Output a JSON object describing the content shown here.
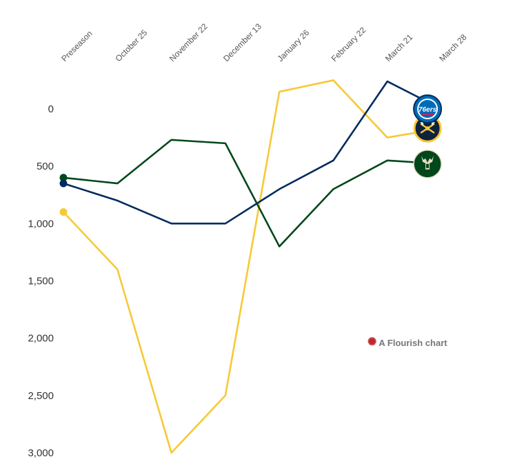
{
  "chart_data": {
    "type": "line",
    "title": "",
    "xlabel": "",
    "ylabel": "",
    "y_reversed": true,
    "ylim": [
      -250,
      3000
    ],
    "yticks": [
      0,
      500,
      1000,
      1500,
      2000,
      2500,
      3000
    ],
    "ytick_labels": [
      "0",
      "500",
      "1,000",
      "1,500",
      "2,000",
      "2,500",
      "3,000"
    ],
    "categories": [
      "Preseason",
      "October 25",
      "November 22",
      "December 13",
      "January 26",
      "February 22",
      "March 21",
      "March 28"
    ],
    "series": [
      {
        "name": "Denver Nuggets",
        "color": "#f6c935",
        "values": [
          900,
          1400,
          3000,
          2500,
          -150,
          -250,
          250,
          170
        ],
        "logo": "nuggets-logo"
      },
      {
        "name": "Milwaukee Bucks",
        "color": "#00471b",
        "values": [
          600,
          650,
          270,
          300,
          1200,
          700,
          450,
          480
        ],
        "logo": "bucks-logo"
      },
      {
        "name": "Philadelphia 76ers",
        "color": "#002b5c",
        "values": [
          650,
          800,
          1000,
          1000,
          700,
          450,
          -240,
          0
        ],
        "logo": "76ers-logo"
      }
    ],
    "logo_texts": {
      "76ers": "76ers"
    }
  },
  "credit": {
    "text": "A Flourish chart",
    "icon": "flourish-star-icon",
    "color": "#c0282d"
  }
}
